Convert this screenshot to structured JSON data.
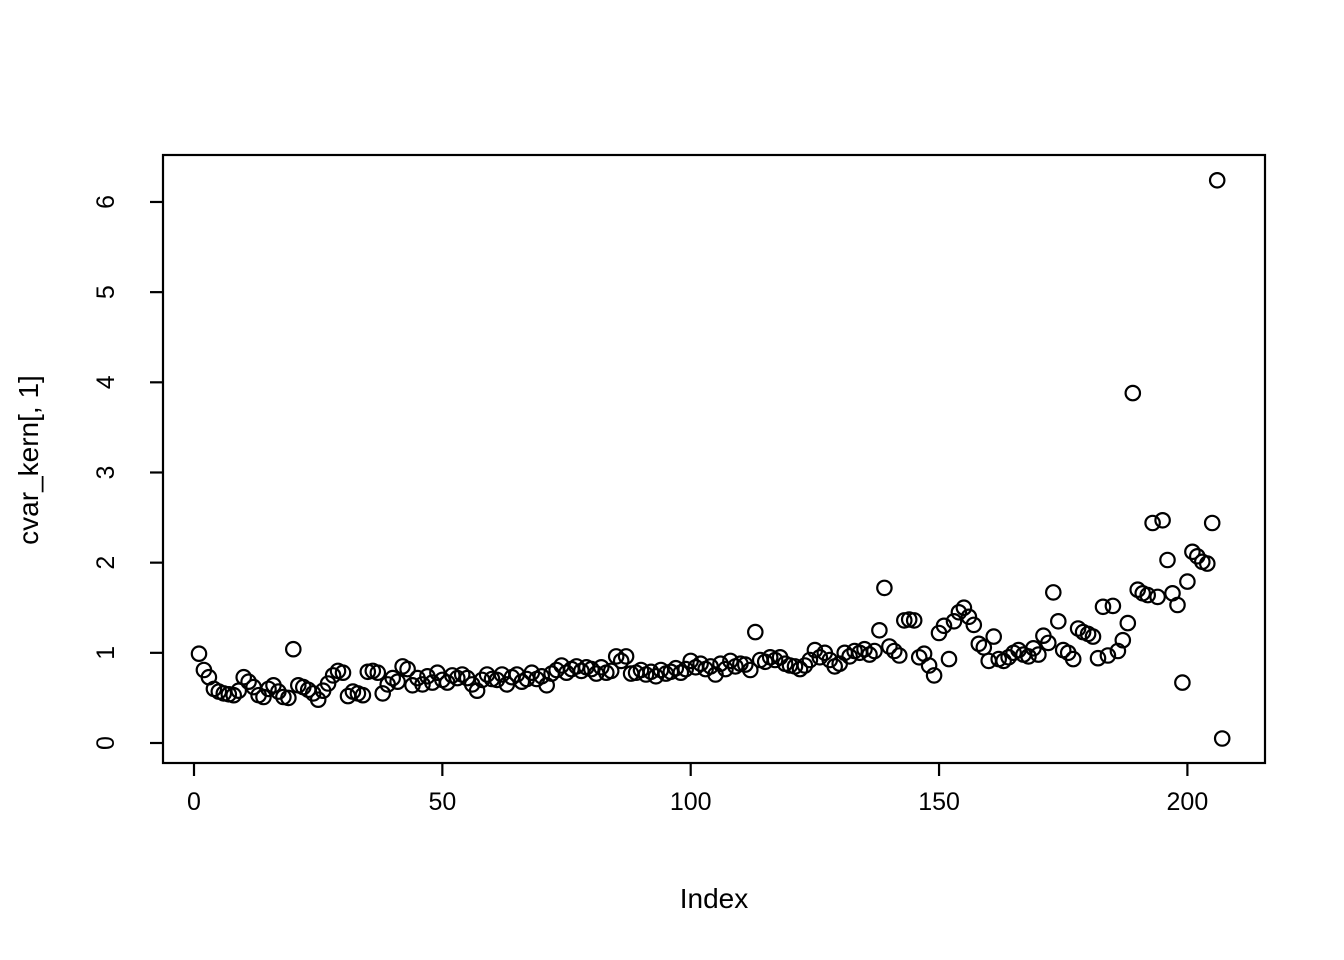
{
  "window": {
    "background": "#ffffff",
    "foreground": "#000000"
  },
  "chart_data": {
    "type": "scatter",
    "title": "",
    "xlabel": "Index",
    "ylabel": "cvar_kern[, 1]",
    "x_ticks": [
      0,
      50,
      100,
      150,
      200
    ],
    "y_ticks": [
      0,
      1,
      2,
      3,
      4,
      5,
      6
    ],
    "xlim": [
      -6,
      215
    ],
    "ylim": [
      -0.22,
      6.52
    ],
    "grid": false,
    "legend": "none",
    "marker": "open-circle",
    "marker_color": "#000000",
    "x_start_index": 1,
    "values": [
      0.99,
      0.81,
      0.73,
      0.6,
      0.57,
      0.55,
      0.54,
      0.53,
      0.58,
      0.73,
      0.68,
      0.62,
      0.53,
      0.51,
      0.6,
      0.64,
      0.57,
      0.51,
      0.5,
      1.04,
      0.64,
      0.62,
      0.59,
      0.55,
      0.48,
      0.58,
      0.66,
      0.75,
      0.8,
      0.78,
      0.52,
      0.57,
      0.55,
      0.53,
      0.79,
      0.8,
      0.78,
      0.55,
      0.65,
      0.72,
      0.68,
      0.85,
      0.82,
      0.64,
      0.72,
      0.65,
      0.74,
      0.67,
      0.78,
      0.7,
      0.67,
      0.75,
      0.72,
      0.76,
      0.72,
      0.65,
      0.58,
      0.7,
      0.76,
      0.71,
      0.7,
      0.76,
      0.65,
      0.73,
      0.76,
      0.68,
      0.71,
      0.78,
      0.71,
      0.74,
      0.64,
      0.77,
      0.81,
      0.86,
      0.78,
      0.82,
      0.85,
      0.8,
      0.84,
      0.82,
      0.77,
      0.84,
      0.78,
      0.8,
      0.96,
      0.91,
      0.96,
      0.77,
      0.78,
      0.81,
      0.76,
      0.79,
      0.74,
      0.81,
      0.77,
      0.79,
      0.83,
      0.78,
      0.82,
      0.91,
      0.84,
      0.88,
      0.82,
      0.85,
      0.76,
      0.88,
      0.82,
      0.91,
      0.85,
      0.88,
      0.87,
      0.81,
      1.23,
      0.92,
      0.9,
      0.95,
      0.92,
      0.95,
      0.88,
      0.86,
      0.85,
      0.82,
      0.86,
      0.92,
      1.03,
      0.95,
      1.0,
      0.92,
      0.85,
      0.88,
      1.0,
      0.96,
      1.02,
      1.0,
      1.04,
      0.98,
      1.02,
      1.25,
      1.72,
      1.07,
      1.02,
      0.97,
      1.36,
      1.37,
      1.36,
      0.95,
      0.99,
      0.86,
      0.75,
      1.22,
      1.3,
      0.93,
      1.35,
      1.45,
      1.5,
      1.4,
      1.31,
      1.1,
      1.06,
      0.91,
      1.18,
      0.93,
      0.91,
      0.95,
      1.0,
      1.03,
      0.98,
      0.96,
      1.05,
      0.98,
      1.19,
      1.11,
      1.67,
      1.35,
      1.03,
      1.0,
      0.93,
      1.27,
      1.23,
      1.21,
      1.18,
      0.94,
      1.51,
      0.97,
      1.52,
      1.02,
      1.14,
      1.33,
      3.88,
      1.7,
      1.66,
      1.64,
      2.44,
      1.62,
      2.47,
      2.03,
      1.66,
      1.53,
      0.67,
      1.79,
      2.12,
      2.07,
      2.01,
      1.99,
      2.44,
      6.24,
      0.05
    ]
  }
}
